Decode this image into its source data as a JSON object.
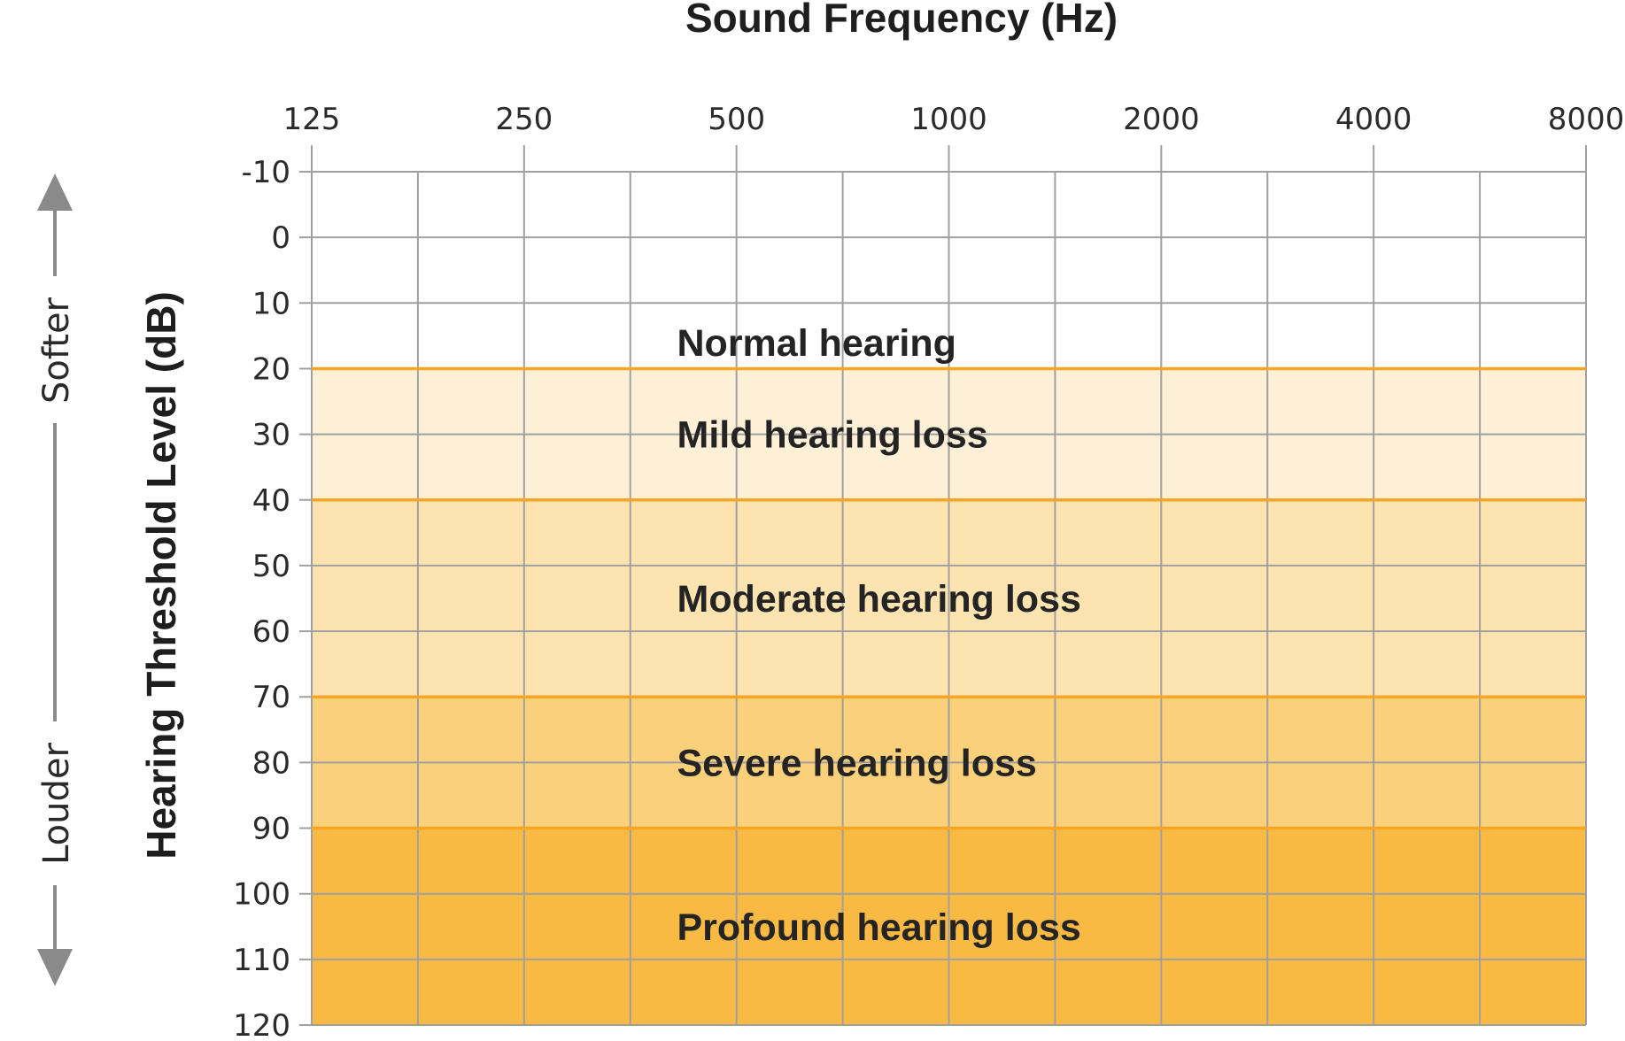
{
  "chart_data": {
    "type": "heatmap",
    "title": "Sound Frequency (Hz)",
    "xlabel": "Sound Frequency (Hz)",
    "ylabel": "Hearing Threshold Level (dB)",
    "x_ticks": [
      "125",
      "250",
      "500",
      "1000",
      "2000",
      "4000",
      "8000"
    ],
    "x_scale": "log2",
    "x_axis_position": "top",
    "y_ticks": [
      -10,
      0,
      10,
      20,
      30,
      40,
      50,
      60,
      70,
      80,
      90,
      100,
      110,
      120
    ],
    "ylim": [
      -10,
      120
    ],
    "y_inverted": true,
    "grid": true,
    "bands": [
      {
        "label": "Normal hearing",
        "from": -10,
        "to": 20,
        "color": "#ffffff"
      },
      {
        "label": "Mild hearing loss",
        "from": 20,
        "to": 40,
        "color": "#fdf0d6"
      },
      {
        "label": "Moderate hearing loss",
        "from": 40,
        "to": 70,
        "color": "#fce3b0"
      },
      {
        "label": "Severe hearing loss",
        "from": 70,
        "to": 90,
        "color": "#fbd07a"
      },
      {
        "label": "Profound hearing loss",
        "from": 90,
        "to": 120,
        "color": "#f9ba44"
      }
    ],
    "band_boundary_color": "#f5a623",
    "grid_color": "#a0a0a0",
    "direction_labels": {
      "up": "Softer",
      "down": "Louder"
    }
  }
}
